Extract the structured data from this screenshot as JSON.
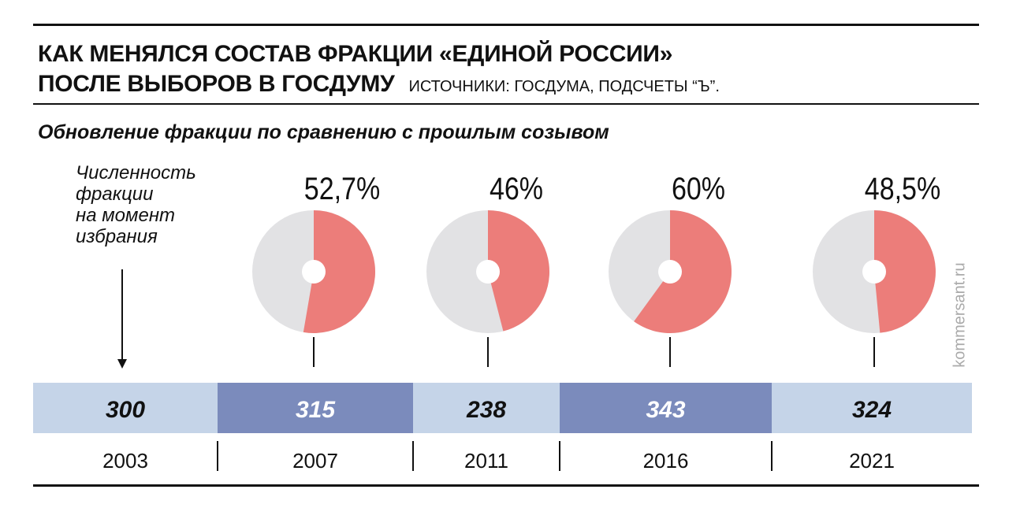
{
  "header": {
    "title_line1": "КАК МЕНЯЛСЯ СОСТАВ ФРАКЦИИ «ЕДИНОЙ РОССИИ»",
    "title_line2": "ПОСЛЕ ВЫБОРОВ В ГОСДУМУ",
    "source": "ИСТОЧНИКИ: ГОСДУМА, ПОДСЧЕТЫ “Ъ”."
  },
  "subtitle": "Обновление фракции по сравнению с прошлым созывом",
  "note": {
    "lines": [
      "Численность",
      "фракции",
      "на момент",
      "избрания"
    ]
  },
  "watermark": "kommersant.ru",
  "colors": {
    "pie_share": "#ec7d7a",
    "pie_rest": "#e2e2e4",
    "bar_light": "#c5d4e8",
    "bar_dark": "#7b8bbc",
    "text_dark": "#111111",
    "text_light": "#ffffff"
  },
  "chart_data": [
    {
      "type": "pie",
      "title": "Обновление фракции по сравнению с прошлым созывом",
      "categories": [
        "2007",
        "2011",
        "2016",
        "2021"
      ],
      "values": [
        52.7,
        46,
        60,
        48.5
      ],
      "unit": "%",
      "labels": [
        "52,7%",
        "46%",
        "60%",
        "48,5%"
      ]
    },
    {
      "type": "table",
      "categories": [
        "2003",
        "2007",
        "2011",
        "2016",
        "2021"
      ],
      "values": [
        300,
        315,
        238,
        343,
        324
      ],
      "labels": [
        "300",
        "315",
        "238",
        "343",
        "324"
      ],
      "shade": [
        "light",
        "dark",
        "light",
        "dark",
        "light"
      ]
    }
  ]
}
